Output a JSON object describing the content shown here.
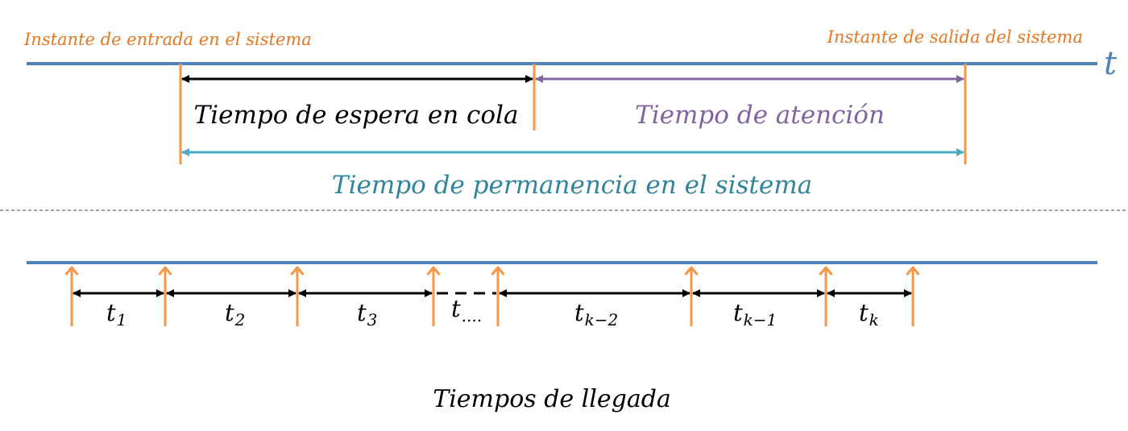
{
  "top_diagram": {
    "entry_label": "Instante de entrada en el sistema",
    "exit_label": "Instante de salida del sistema",
    "axis_label": "t",
    "queue_wait_label": "Tiempo de espera en cola",
    "service_label": "Tiempo de atención",
    "system_time_label": "Tiempo de permanencia en el sistema"
  },
  "bottom_diagram": {
    "intervals": [
      {
        "main": "t",
        "sub": "1"
      },
      {
        "main": "t",
        "sub": "2"
      },
      {
        "main": "t",
        "sub": "3"
      },
      {
        "main": "t",
        "sub": "...."
      },
      {
        "main": "t",
        "sub": "k−2"
      },
      {
        "main": "t",
        "sub": "k−1"
      },
      {
        "main": "t",
        "sub": "k"
      }
    ],
    "caption": "Tiempos de llegada"
  },
  "colors": {
    "axis": "#4F81BD",
    "marker": "#F79646",
    "orange_text": "#E87722",
    "purple": "#8064A2",
    "teal": "#4BACC6",
    "teal_text": "#31849B",
    "black": "#000000"
  }
}
